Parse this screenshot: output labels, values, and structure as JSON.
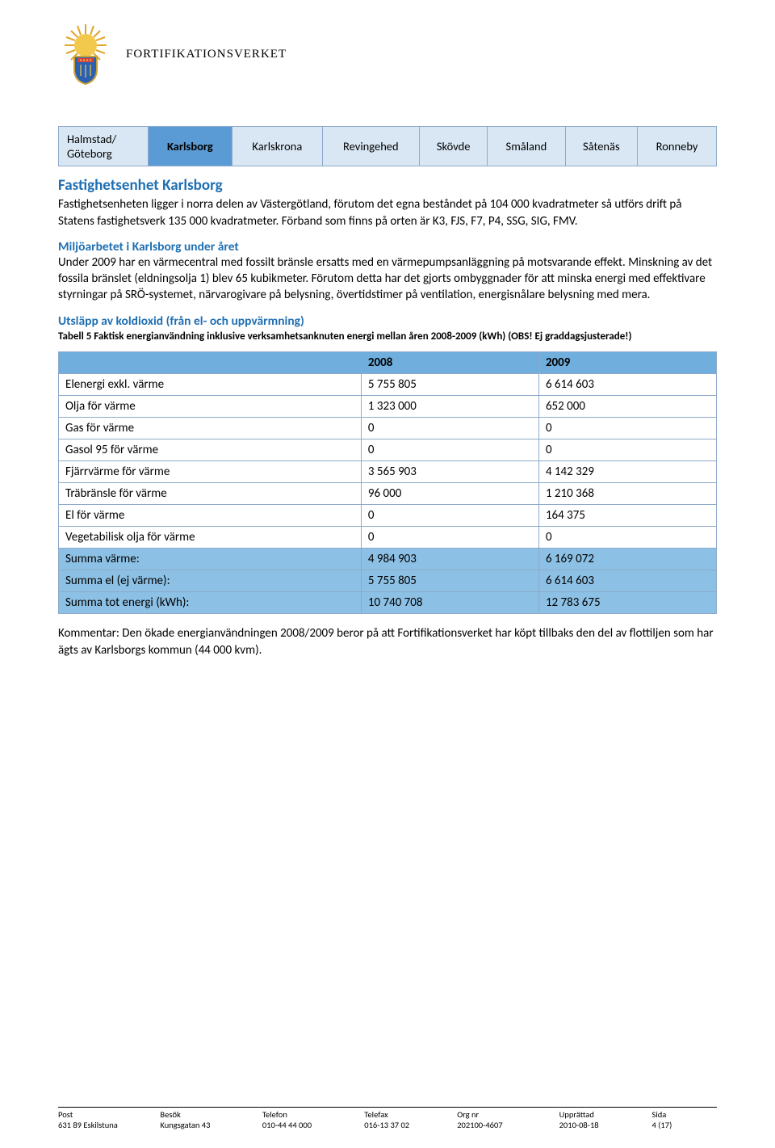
{
  "header": {
    "org_name": "FORTIFIKATIONSVERKET"
  },
  "tabs": {
    "items": [
      "Halmstad/\nGöteborg",
      "Karlsborg",
      "Karlskrona",
      "Revingehed",
      "Skövde",
      "Småland",
      "Såtenäs",
      "Ronneby"
    ],
    "active_index": 1
  },
  "section1": {
    "title": "Fastighetsenhet Karlsborg",
    "paragraph": "Fastighetsenheten ligger i norra delen av Västergötland, förutom det egna beståndet på 104 000 kvadratmeter så utförs drift på Statens fastighetsverk 135 000 kvadratmeter. Förband som finns på orten är K3, FJS, F7, P4, SSG, SIG, FMV."
  },
  "section2": {
    "title": "Miljöarbetet i Karlsborg under året",
    "paragraph": "Under 2009 har en värmecentral med fossilt bränsle ersatts med en värmepumpsanläggning på motsvarande effekt. Minskning av det fossila bränslet (eldningsolja 1) blev 65 kubikmeter. Förutom detta har det gjorts ombyggnader för att minska energi med effektivare styrningar på SRÖ-systemet, närvarogivare på belysning, övertidstimer på ventilation, energisnålare belysning med mera."
  },
  "section3": {
    "title": "Utsläpp av koldioxid (från el- och uppvärmning)",
    "caption": "Tabell 5 Faktisk energianvändning inklusive verksamhetsanknuten energi mellan åren 2008-2009 (kWh) (OBS! Ej graddagsjusterade!)"
  },
  "energy_table": {
    "columns": [
      "",
      "2008",
      "2009"
    ],
    "rows": [
      {
        "label": "Elenergi exkl. värme",
        "c2008": "5 755 805",
        "c2009": "6 614 603",
        "summary": false
      },
      {
        "label": "Olja för värme",
        "c2008": "1 323 000",
        "c2009": "652 000",
        "summary": false
      },
      {
        "label": "Gas för värme",
        "c2008": "0",
        "c2009": "0",
        "summary": false
      },
      {
        "label": "Gasol 95 för värme",
        "c2008": "0",
        "c2009": "0",
        "summary": false
      },
      {
        "label": "Fjärrvärme för värme",
        "c2008": "3 565 903",
        "c2009": "4 142 329",
        "summary": false
      },
      {
        "label": "Träbränsle för värme",
        "c2008": "96 000",
        "c2009": "1 210 368",
        "summary": false
      },
      {
        "label": "El för värme",
        "c2008": "0",
        "c2009": "164 375",
        "summary": false
      },
      {
        "label": "Vegetabilisk olja för värme",
        "c2008": "0",
        "c2009": "0",
        "summary": false
      },
      {
        "label": "Summa värme:",
        "c2008": "4 984 903",
        "c2009": "6 169 072",
        "summary": true
      },
      {
        "label": "Summa el (ej värme):",
        "c2008": "5 755 805",
        "c2009": "6 614 603",
        "summary": true
      },
      {
        "label": "Summa tot energi (kWh):",
        "c2008": "10 740 708",
        "c2009": "12 783 675",
        "summary": true
      }
    ],
    "header_bg": "#6faedd",
    "summary_bg": "#8cc0e4",
    "border_color": "#8ea9c9",
    "col_widths": [
      "46%",
      "27%",
      "27%"
    ]
  },
  "comment": {
    "text": "Kommentar: Den ökade energianvändningen 2008/2009 beror på att Fortifikationsverket har köpt tillbaks den del av flottiljen som har ägts av Karlsborgs kommun (44 000 kvm)."
  },
  "footer": {
    "labels": [
      "Post",
      "Besök",
      "Telefon",
      "Telefax",
      "Org nr",
      "Upprättad",
      "Sida"
    ],
    "values": [
      "631 89 Eskilstuna",
      "Kungsgatan 43",
      "010-44 44 000",
      "016-13 37 02",
      "202100-4607",
      "2010-08-18",
      "4 (17)"
    ]
  },
  "colors": {
    "link_blue": "#1f6fb2",
    "tab_bg": "#d9e7f4",
    "tab_active_bg": "#5b9bd5"
  }
}
